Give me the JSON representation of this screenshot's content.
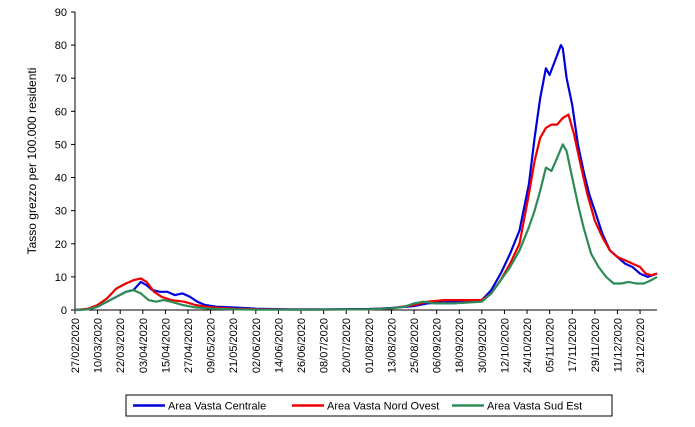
{
  "chart_data": {
    "type": "line",
    "ylabel": "Tasso grezzo per 100.000 residenti",
    "ylim": [
      0,
      90
    ],
    "yticks": [
      0,
      10,
      20,
      30,
      40,
      50,
      60,
      70,
      80,
      90
    ],
    "xticks": [
      "27/02/2020",
      "10/03/2020",
      "22/03/2020",
      "03/04/2020",
      "15/04/2020",
      "27/04/2020",
      "09/05/2020",
      "21/05/2020",
      "02/06/2020",
      "14/06/2020",
      "26/06/2020",
      "08/07/2020",
      "20/07/2020",
      "01/08/2020",
      "13/08/2020",
      "25/08/2020",
      "06/09/2020",
      "18/09/2020",
      "30/09/2020",
      "12/10/2020",
      "24/10/2020",
      "05/11/2020",
      "17/11/2020",
      "29/11/2020",
      "11/12/2020",
      "23/12/2020"
    ],
    "xlim": [
      "2020-02-27",
      "2021-01-01"
    ],
    "grid": false,
    "legend_position": "bottom",
    "series": [
      {
        "name": "Area Vasta Centrale",
        "color": "#0000dd",
        "points": [
          [
            "2020-02-27",
            0
          ],
          [
            "2020-03-05",
            0.2
          ],
          [
            "2020-03-10",
            1
          ],
          [
            "2020-03-15",
            2.5
          ],
          [
            "2020-03-20",
            4
          ],
          [
            "2020-03-25",
            5.5
          ],
          [
            "2020-03-29",
            6
          ],
          [
            "2020-04-02",
            8.5
          ],
          [
            "2020-04-05",
            7.5
          ],
          [
            "2020-04-08",
            6
          ],
          [
            "2020-04-12",
            5.5
          ],
          [
            "2020-04-16",
            5.5
          ],
          [
            "2020-04-20",
            4.5
          ],
          [
            "2020-04-24",
            5
          ],
          [
            "2020-04-28",
            4
          ],
          [
            "2020-05-02",
            2.5
          ],
          [
            "2020-05-06",
            1.5
          ],
          [
            "2020-05-12",
            1
          ],
          [
            "2020-05-20",
            0.8
          ],
          [
            "2020-06-02",
            0.4
          ],
          [
            "2020-06-20",
            0.2
          ],
          [
            "2020-07-10",
            0.2
          ],
          [
            "2020-08-01",
            0.3
          ],
          [
            "2020-08-13",
            0.6
          ],
          [
            "2020-08-25",
            1.2
          ],
          [
            "2020-09-01",
            2
          ],
          [
            "2020-09-15",
            2.5
          ],
          [
            "2020-09-30",
            3
          ],
          [
            "2020-10-05",
            6
          ],
          [
            "2020-10-10",
            11
          ],
          [
            "2020-10-15",
            17
          ],
          [
            "2020-10-20",
            24
          ],
          [
            "2020-10-25",
            38
          ],
          [
            "2020-10-28",
            52
          ],
          [
            "2020-10-31",
            64
          ],
          [
            "2020-11-03",
            73
          ],
          [
            "2020-11-05",
            71
          ],
          [
            "2020-11-07",
            74
          ],
          [
            "2020-11-09",
            77
          ],
          [
            "2020-11-11",
            80
          ],
          [
            "2020-11-12",
            79
          ],
          [
            "2020-11-14",
            70
          ],
          [
            "2020-11-17",
            62
          ],
          [
            "2020-11-20",
            50
          ],
          [
            "2020-11-23",
            42
          ],
          [
            "2020-11-26",
            35
          ],
          [
            "2020-11-29",
            30
          ],
          [
            "2020-12-03",
            23
          ],
          [
            "2020-12-07",
            18
          ],
          [
            "2020-12-11",
            16
          ],
          [
            "2020-12-15",
            14
          ],
          [
            "2020-12-19",
            13
          ],
          [
            "2020-12-23",
            11
          ],
          [
            "2020-12-27",
            10
          ],
          [
            "2021-01-01",
            11
          ]
        ]
      },
      {
        "name": "Area Vasta Nord Ovest",
        "color": "#ee0000",
        "points": [
          [
            "2020-02-27",
            0
          ],
          [
            "2020-03-05",
            0.4
          ],
          [
            "2020-03-10",
            1.5
          ],
          [
            "2020-03-15",
            3.5
          ],
          [
            "2020-03-20",
            6.5
          ],
          [
            "2020-03-25",
            8
          ],
          [
            "2020-03-29",
            9
          ],
          [
            "2020-04-02",
            9.5
          ],
          [
            "2020-04-05",
            8.5
          ],
          [
            "2020-04-09",
            5.5
          ],
          [
            "2020-04-13",
            4
          ],
          [
            "2020-04-18",
            3
          ],
          [
            "2020-04-25",
            2.5
          ],
          [
            "2020-05-01",
            1.5
          ],
          [
            "2020-05-09",
            0.8
          ],
          [
            "2020-05-21",
            0.4
          ],
          [
            "2020-06-02",
            0.2
          ],
          [
            "2020-07-01",
            0.1
          ],
          [
            "2020-08-01",
            0.2
          ],
          [
            "2020-08-13",
            0.5
          ],
          [
            "2020-08-25",
            1.5
          ],
          [
            "2020-09-01",
            2.5
          ],
          [
            "2020-09-10",
            3
          ],
          [
            "2020-09-20",
            3
          ],
          [
            "2020-09-30",
            3
          ],
          [
            "2020-10-05",
            5
          ],
          [
            "2020-10-10",
            9
          ],
          [
            "2020-10-15",
            14
          ],
          [
            "2020-10-20",
            20
          ],
          [
            "2020-10-25",
            35
          ],
          [
            "2020-10-28",
            45
          ],
          [
            "2020-10-31",
            52
          ],
          [
            "2020-11-03",
            55
          ],
          [
            "2020-11-06",
            56
          ],
          [
            "2020-11-09",
            56
          ],
          [
            "2020-11-12",
            58
          ],
          [
            "2020-11-15",
            59
          ],
          [
            "2020-11-18",
            53
          ],
          [
            "2020-11-21",
            45
          ],
          [
            "2020-11-25",
            35
          ],
          [
            "2020-11-29",
            27
          ],
          [
            "2020-12-03",
            22
          ],
          [
            "2020-12-07",
            18
          ],
          [
            "2020-12-11",
            16
          ],
          [
            "2020-12-15",
            15
          ],
          [
            "2020-12-19",
            14
          ],
          [
            "2020-12-23",
            13
          ],
          [
            "2020-12-26",
            11
          ],
          [
            "2020-12-29",
            10.5
          ],
          [
            "2021-01-01",
            11
          ]
        ]
      },
      {
        "name": "Area Vasta Sud Est",
        "color": "#2e8b57",
        "points": [
          [
            "2020-02-27",
            0
          ],
          [
            "2020-03-05",
            0.2
          ],
          [
            "2020-03-10",
            1
          ],
          [
            "2020-03-15",
            2.5
          ],
          [
            "2020-03-20",
            4
          ],
          [
            "2020-03-25",
            5.5
          ],
          [
            "2020-03-29",
            6
          ],
          [
            "2020-04-02",
            5
          ],
          [
            "2020-04-06",
            3
          ],
          [
            "2020-04-10",
            2.5
          ],
          [
            "2020-04-14",
            3
          ],
          [
            "2020-04-18",
            2.5
          ],
          [
            "2020-04-24",
            1.5
          ],
          [
            "2020-05-01",
            0.8
          ],
          [
            "2020-05-09",
            0.4
          ],
          [
            "2020-05-21",
            0.2
          ],
          [
            "2020-06-02",
            0.1
          ],
          [
            "2020-07-01",
            0.1
          ],
          [
            "2020-08-01",
            0.2
          ],
          [
            "2020-08-13",
            0.5
          ],
          [
            "2020-08-20",
            1
          ],
          [
            "2020-08-25",
            2
          ],
          [
            "2020-08-30",
            2.5
          ],
          [
            "2020-09-05",
            2
          ],
          [
            "2020-09-15",
            2
          ],
          [
            "2020-09-30",
            2.5
          ],
          [
            "2020-10-05",
            5
          ],
          [
            "2020-10-10",
            9
          ],
          [
            "2020-10-15",
            13
          ],
          [
            "2020-10-20",
            18
          ],
          [
            "2020-10-25",
            25
          ],
          [
            "2020-10-28",
            30
          ],
          [
            "2020-10-31",
            36
          ],
          [
            "2020-11-03",
            43
          ],
          [
            "2020-11-06",
            42
          ],
          [
            "2020-11-09",
            46
          ],
          [
            "2020-11-12",
            50
          ],
          [
            "2020-11-14",
            48
          ],
          [
            "2020-11-17",
            40
          ],
          [
            "2020-11-20",
            32
          ],
          [
            "2020-11-23",
            25
          ],
          [
            "2020-11-27",
            17
          ],
          [
            "2020-12-01",
            13
          ],
          [
            "2020-12-05",
            10
          ],
          [
            "2020-12-09",
            8
          ],
          [
            "2020-12-13",
            8
          ],
          [
            "2020-12-17",
            8.5
          ],
          [
            "2020-12-21",
            8
          ],
          [
            "2020-12-25",
            8
          ],
          [
            "2020-12-29",
            9
          ],
          [
            "2021-01-01",
            10
          ]
        ]
      }
    ]
  }
}
